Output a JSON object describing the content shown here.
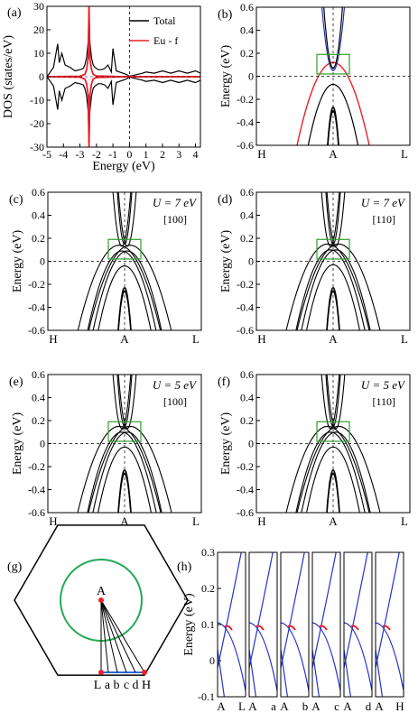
{
  "chart_data": [
    {
      "panel": "(a)",
      "type": "line",
      "xlabel": "Energy (eV)",
      "ylabel": "DOS (states/eV)",
      "xlim": [
        -5,
        4.3
      ],
      "ylim": [
        -30,
        30
      ],
      "xticks": [
        -5,
        -4,
        -3,
        -2,
        -1,
        0,
        1,
        2,
        3,
        4
      ],
      "yticks": [
        -30,
        -20,
        -10,
        0,
        10,
        20,
        30
      ],
      "legend_position": "top-right",
      "series": [
        {
          "name": "Total",
          "color": "#000000",
          "x": [
            -5.0,
            -4.8,
            -4.6,
            -4.5,
            -4.35,
            -4.25,
            -4.1,
            -3.9,
            -3.6,
            -3.3,
            -3.0,
            -2.8,
            -2.7,
            -2.6,
            -2.5,
            -2.45,
            -2.4,
            -2.3,
            -2.2,
            -2.1,
            -1.9,
            -1.7,
            -1.5,
            -1.3,
            -1.1,
            -1.0,
            -0.8,
            -0.6,
            -0.4,
            -0.2,
            0.0,
            0.2,
            0.5,
            0.8,
            1.0,
            1.5,
            2.0,
            2.5,
            3.0,
            3.5,
            4.0,
            4.3
          ],
          "y": [
            0,
            2,
            4,
            8,
            14,
            6,
            10,
            5,
            4,
            2.5,
            3,
            3.5,
            5,
            8,
            15,
            30,
            15,
            8,
            5,
            4,
            3,
            3,
            3.5,
            5,
            2,
            12,
            2.5,
            2,
            1.5,
            1,
            0.2,
            0.5,
            1,
            1.5,
            2,
            1.5,
            2.5,
            1.5,
            2.5,
            1.5,
            2.5,
            1.5
          ]
        },
        {
          "name": "Eu - f",
          "color": "#e8202a",
          "x": [
            -5.0,
            -3.0,
            -2.7,
            -2.6,
            -2.5,
            -2.45,
            -2.4,
            -2.3,
            -2.2,
            -2.0,
            -1.0,
            0.0,
            4.3
          ],
          "y": [
            0,
            0.2,
            1,
            3,
            8,
            30,
            8,
            3,
            1,
            0.3,
            0.1,
            0,
            0
          ]
        }
      ],
      "mirrored_spin_down": true
    },
    {
      "panel": "(b)",
      "type": "line",
      "ylabel": "Energy (eV)",
      "ylim": [
        -0.6,
        0.6
      ],
      "yticks": [
        -0.6,
        -0.4,
        -0.2,
        0,
        0.2,
        0.4,
        0.6
      ],
      "kpath": [
        "H",
        "A",
        "L"
      ]
    },
    {
      "panel": "(c)",
      "type": "line",
      "ylabel": "Energy (eV)",
      "annotation": "U = 7 eV",
      "direction": "[100]",
      "ylim": [
        -0.6,
        0.6
      ],
      "yticks": [
        -0.6,
        -0.4,
        -0.2,
        0,
        0.2,
        0.4,
        0.6
      ],
      "kpath": [
        "H",
        "A",
        "L"
      ]
    },
    {
      "panel": "(d)",
      "type": "line",
      "ylabel": "Energy (eV)",
      "annotation": "U = 7 eV",
      "direction": "[110]",
      "ylim": [
        -0.6,
        0.6
      ],
      "yticks": [
        -0.6,
        -0.4,
        -0.2,
        0,
        0.2,
        0.4,
        0.6
      ],
      "kpath": [
        "H",
        "A",
        "L"
      ]
    },
    {
      "panel": "(e)",
      "type": "line",
      "ylabel": "Energy (eV)",
      "annotation": "U = 5 eV",
      "direction": "[100]",
      "ylim": [
        -0.6,
        0.6
      ],
      "yticks": [
        -0.6,
        -0.4,
        -0.2,
        0,
        0.2,
        0.4,
        0.6
      ],
      "kpath": [
        "H",
        "A",
        "L"
      ]
    },
    {
      "panel": "(f)",
      "type": "line",
      "ylabel": "Energy (eV)",
      "annotation": "U = 5 eV",
      "direction": "[110]",
      "ylim": [
        -0.6,
        0.6
      ],
      "yticks": [
        -0.6,
        -0.4,
        -0.2,
        0,
        0.2,
        0.4,
        0.6
      ],
      "kpath": [
        "H",
        "A",
        "L"
      ]
    },
    {
      "panel": "(g)",
      "type": "diagram",
      "labels": [
        "A",
        "L",
        "a",
        "b",
        "c",
        "d",
        "H"
      ]
    },
    {
      "panel": "(h)",
      "type": "line",
      "ylabel": "Energy (eV)",
      "ylim": [
        -0.1,
        0.3
      ],
      "yticks": [
        -0.1,
        0,
        0.1,
        0.2,
        0.3
      ],
      "sub_panels": [
        [
          "A",
          "L"
        ],
        [
          "A",
          "a"
        ],
        [
          "A",
          "b"
        ],
        [
          "A",
          "c"
        ],
        [
          "A",
          "d"
        ],
        [
          "A",
          "H"
        ]
      ]
    }
  ]
}
